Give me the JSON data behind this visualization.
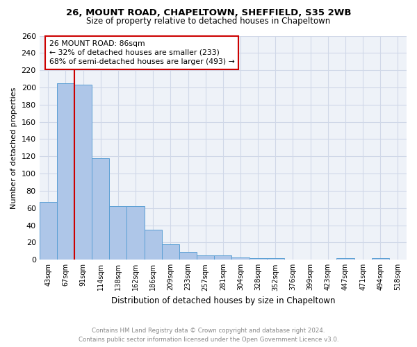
{
  "title": "26, MOUNT ROAD, CHAPELTOWN, SHEFFIELD, S35 2WB",
  "subtitle": "Size of property relative to detached houses in Chapeltown",
  "xlabel": "Distribution of detached houses by size in Chapeltown",
  "ylabel": "Number of detached properties",
  "footnote": "Contains HM Land Registry data © Crown copyright and database right 2024.\nContains public sector information licensed under the Open Government Licence v3.0.",
  "categories": [
    "43sqm",
    "67sqm",
    "91sqm",
    "114sqm",
    "138sqm",
    "162sqm",
    "186sqm",
    "209sqm",
    "233sqm",
    "257sqm",
    "281sqm",
    "304sqm",
    "328sqm",
    "352sqm",
    "376sqm",
    "399sqm",
    "423sqm",
    "447sqm",
    "471sqm",
    "494sqm",
    "518sqm"
  ],
  "values": [
    67,
    205,
    203,
    118,
    62,
    62,
    35,
    18,
    9,
    5,
    5,
    3,
    2,
    2,
    0,
    0,
    0,
    2,
    0,
    2,
    0
  ],
  "bar_color": "#aec6e8",
  "bar_edge_color": "#5a9fd4",
  "grid_color": "#d0d8e8",
  "background_color": "#eef2f8",
  "vline_x": 1.5,
  "vline_color": "#cc0000",
  "annotation_text": "26 MOUNT ROAD: 86sqm\n← 32% of detached houses are smaller (233)\n68% of semi-detached houses are larger (493) →",
  "annotation_box_color": "#cc0000",
  "ylim": [
    0,
    260
  ],
  "yticks": [
    0,
    20,
    40,
    60,
    80,
    100,
    120,
    140,
    160,
    180,
    200,
    220,
    240,
    260
  ]
}
